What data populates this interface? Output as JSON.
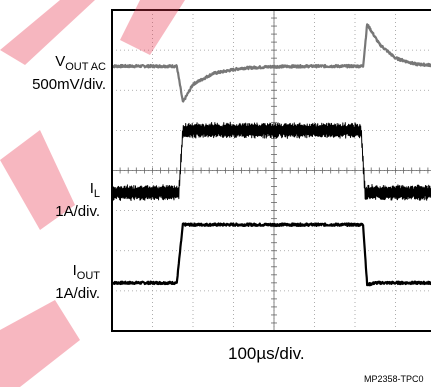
{
  "chart_data": {
    "type": "line",
    "title": "",
    "time_scale": "100µs/div.",
    "divisions": {
      "x": 8,
      "y": 8
    },
    "grid": true,
    "part_number": "MP2358-TPC0",
    "series": [
      {
        "key": "vout_ac",
        "name_main": "V",
        "name_sub": "OUT AC",
        "scale": "500mV/div.",
        "color": "#777777",
        "baseline_div": 6.6,
        "points": [
          [
            0,
            0
          ],
          [
            1.6,
            0
          ],
          [
            1.75,
            -0.9
          ],
          [
            2.0,
            -0.45
          ],
          [
            2.5,
            -0.18
          ],
          [
            3.2,
            -0.05
          ],
          [
            4.0,
            -0.01
          ],
          [
            5.0,
            0
          ],
          [
            6.2,
            0
          ],
          [
            6.3,
            1.05
          ],
          [
            6.6,
            0.55
          ],
          [
            7.0,
            0.2
          ],
          [
            7.5,
            0.05
          ],
          [
            8.0,
            0.02
          ]
        ]
      },
      {
        "key": "il",
        "name_main": "I",
        "name_sub": "L",
        "scale": "1A/div.",
        "color": "#000000",
        "baseline_div": 3.45,
        "ripple_div": 0.35,
        "points": [
          [
            0,
            0
          ],
          [
            1.65,
            0
          ],
          [
            1.75,
            1.55
          ],
          [
            6.15,
            1.55
          ],
          [
            6.25,
            0
          ],
          [
            8.0,
            0
          ]
        ]
      },
      {
        "key": "iout",
        "name_main": "I",
        "name_sub": "OUT",
        "scale": "1A/div.",
        "color": "#000000",
        "baseline_div": 1.2,
        "points": [
          [
            0,
            0
          ],
          [
            1.6,
            0
          ],
          [
            1.75,
            1.45
          ],
          [
            6.2,
            1.45
          ],
          [
            6.3,
            -0.05
          ],
          [
            6.5,
            0.0
          ],
          [
            8.0,
            0.0
          ]
        ]
      }
    ]
  }
}
